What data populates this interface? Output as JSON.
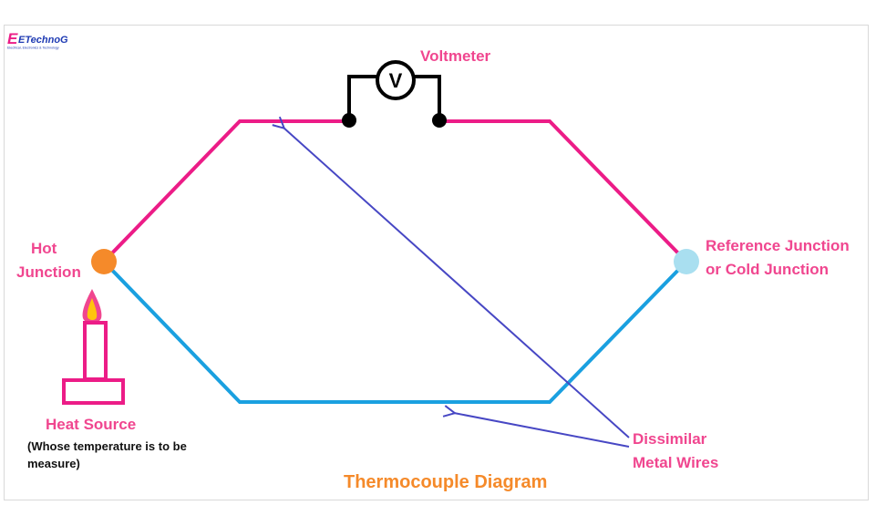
{
  "brand": {
    "name": "ETechnoG",
    "tagline": "Electrical, Electronics & Technology"
  },
  "meter": {
    "symbol": "V",
    "label": "Voltmeter"
  },
  "labels": {
    "hot_junction": [
      "Hot",
      "Junction"
    ],
    "reference_junction": [
      "Reference Junction",
      "or Cold Junction"
    ],
    "heat_source": "Heat Source",
    "heat_source_note": [
      "(Whose temperature is to be",
      "measure)"
    ],
    "dissimilar_wires": [
      "Dissimilar",
      "Metal Wires"
    ],
    "title": "Thermocouple Diagram"
  },
  "colors": {
    "wire_a": "#ec1c87",
    "wire_b": "#1aa0e0",
    "meter_wire": "#000000",
    "hot_junction": "#f58a2a",
    "cold_junction": "#a9dff0",
    "arrow": "#4747c4",
    "candle": "#ec1c87",
    "flame_outer": "#f0468f",
    "flame_inner": "#ffc40d",
    "label_pink": "#f0468f",
    "title_orange": "#f58a2a",
    "frame": "#d9d9d9"
  }
}
